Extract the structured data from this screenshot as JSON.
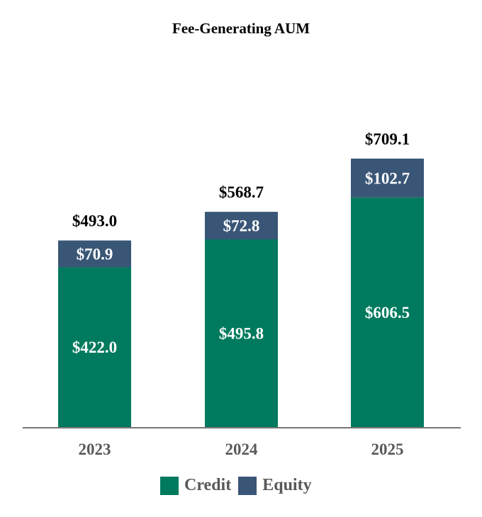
{
  "chart_data": {
    "type": "bar",
    "stacked": true,
    "title": "Fee-Generating AUM",
    "categories": [
      "2023",
      "2024",
      "2025"
    ],
    "series": [
      {
        "name": "Credit",
        "color": "#007A5E",
        "values": [
          422.0,
          495.8,
          606.5
        ],
        "labels": [
          "$422.0",
          "$495.8",
          "$606.5"
        ]
      },
      {
        "name": "Equity",
        "color": "#3A5677",
        "values": [
          70.9,
          72.8,
          102.7
        ],
        "labels": [
          "$70.9",
          "$72.8",
          "$102.7"
        ]
      }
    ],
    "totals": [
      493.0,
      568.7,
      709.1
    ],
    "total_labels": [
      "$493.0",
      "$568.7",
      "$709.1"
    ],
    "xlabel": "",
    "ylabel": "",
    "ylim": [
      0,
      709.1
    ],
    "grid": false,
    "legend": "bottom"
  }
}
